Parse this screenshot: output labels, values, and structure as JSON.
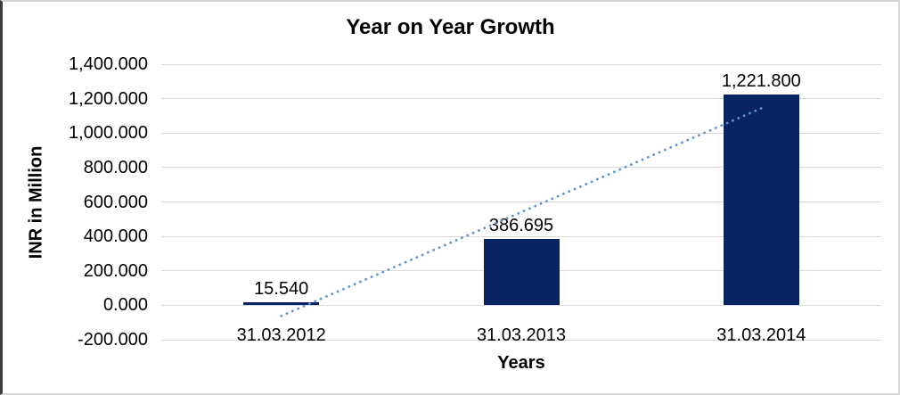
{
  "frame": {
    "background": "#ffffff",
    "border_color": "#d6d6d6",
    "left_edge_color": "#3d3d3d"
  },
  "chart_data": {
    "type": "bar",
    "title": "Year on Year Growth",
    "xlabel": "Years",
    "ylabel": "INR in Million",
    "categories": [
      "31.03.2012",
      "31.03.2013",
      "31.03.2014"
    ],
    "values": [
      15.54,
      386.695,
      1221.8
    ],
    "data_labels": [
      "15.540",
      "386.695",
      "1,221.800"
    ],
    "y_tick_labels": [
      "1,400.000",
      "1,200.000",
      "1,000.000",
      "800.000",
      "600.000",
      "400.000",
      "200.000",
      "0.000",
      "-200.000"
    ],
    "y_tick_values": [
      1400,
      1200,
      1000,
      800,
      600,
      400,
      200,
      0,
      -200
    ],
    "ylim": [
      -200,
      1400
    ],
    "grid": true,
    "legend": "none",
    "bar_color": "#0a2463",
    "gridline_color": "#d9d9d9",
    "text_color": "#000000",
    "trendline": {
      "style": "dotted",
      "color": "#5b93d5",
      "start_value": -62,
      "end_value": 1144,
      "spans": "first to last category"
    }
  }
}
